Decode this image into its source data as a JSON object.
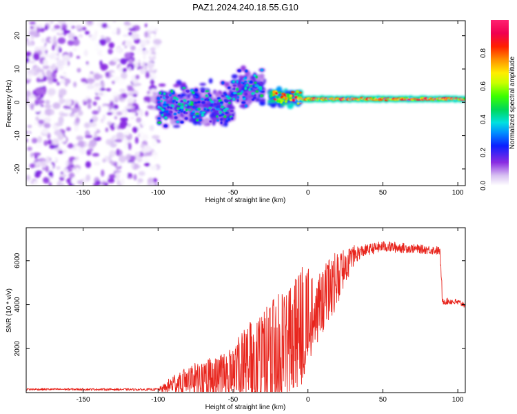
{
  "title": "PAZ1.2024.240.18.55.G10",
  "chart_data": [
    {
      "type": "heatmap",
      "xlabel": "Height of straight line (km)",
      "ylabel": "Frequency (Hz)",
      "xlim": [
        -188,
        105
      ],
      "ylim": [
        -25,
        24.5
      ],
      "xticks": [
        -150,
        -100,
        -50,
        0,
        50,
        100
      ],
      "yticks": [
        -20,
        -10,
        0,
        10,
        20
      ],
      "grid": false,
      "colorbar": {
        "label": "Normalized spectral amplitude",
        "range": [
          0,
          1
        ],
        "ticks": [
          "0.0",
          "0.2",
          "0.4",
          "0.6",
          "0.8"
        ],
        "colormap": "rainbow (white→violet→blue→cyan→green→yellow→red→magenta)"
      },
      "regions": [
        {
          "x_range": [
            -188,
            -100
          ],
          "freq_range": [
            -25,
            24.5
          ],
          "amplitude": [
            0.0,
            0.15
          ],
          "pattern": "scattered noise"
        },
        {
          "x_range": [
            -100,
            -50
          ],
          "freq_range": [
            -8,
            6
          ],
          "amplitude": [
            0.1,
            0.3
          ],
          "pattern": "broad band"
        },
        {
          "x_range": [
            -50,
            -30
          ],
          "freq_range": [
            -2,
            10
          ],
          "amplitude": [
            0.1,
            0.3
          ],
          "pattern": "upward bump"
        },
        {
          "x_range": [
            -25,
            -5
          ],
          "freq_range": [
            -1,
            4
          ],
          "amplitude": [
            0.2,
            0.6
          ],
          "pattern": "narrowing band"
        },
        {
          "x_range": [
            -5,
            105
          ],
          "freq_range": [
            0,
            2
          ],
          "amplitude": [
            0.3,
            1.0
          ],
          "pattern": "narrow line"
        }
      ]
    },
    {
      "type": "line",
      "xlabel": "Height of straight line (km)",
      "ylabel": "SNR (10 * v/v)",
      "xlim": [
        -188,
        105
      ],
      "ylim": [
        0,
        7500
      ],
      "xticks": [
        -150,
        -100,
        -50,
        0,
        50,
        100
      ],
      "yticks": [
        2000,
        4000,
        6000
      ],
      "grid": false,
      "series": [
        {
          "color": "#e8251d",
          "x": [
            -188,
            -150,
            -110,
            -100,
            -95,
            -90,
            -80,
            -70,
            -60,
            -50,
            -45,
            -40,
            -35,
            -30,
            -25,
            -20,
            -15,
            -10,
            -5,
            0,
            5,
            10,
            15,
            20,
            25,
            30,
            35,
            40,
            50,
            60,
            70,
            80,
            88,
            90,
            95,
            100,
            105
          ],
          "mean": [
            150,
            150,
            140,
            150,
            200,
            400,
            550,
            650,
            800,
            950,
            1100,
            1300,
            1400,
            1500,
            1700,
            1800,
            2200,
            2600,
            3000,
            3500,
            3500,
            4200,
            4800,
            5200,
            5700,
            6200,
            6400,
            6500,
            6650,
            6600,
            6550,
            6500,
            6450,
            4150,
            4150,
            4100,
            4000
          ],
          "amplitude": [
            50,
            50,
            50,
            60,
            250,
            500,
            700,
            800,
            900,
            1100,
            1600,
            2000,
            2200,
            2200,
            2400,
            2800,
            2500,
            2500,
            2800,
            2200,
            1500,
            1500,
            1500,
            1200,
            800,
            500,
            300,
            250,
            250,
            250,
            200,
            200,
            200,
            150,
            150,
            150,
            150
          ]
        }
      ]
    }
  ]
}
